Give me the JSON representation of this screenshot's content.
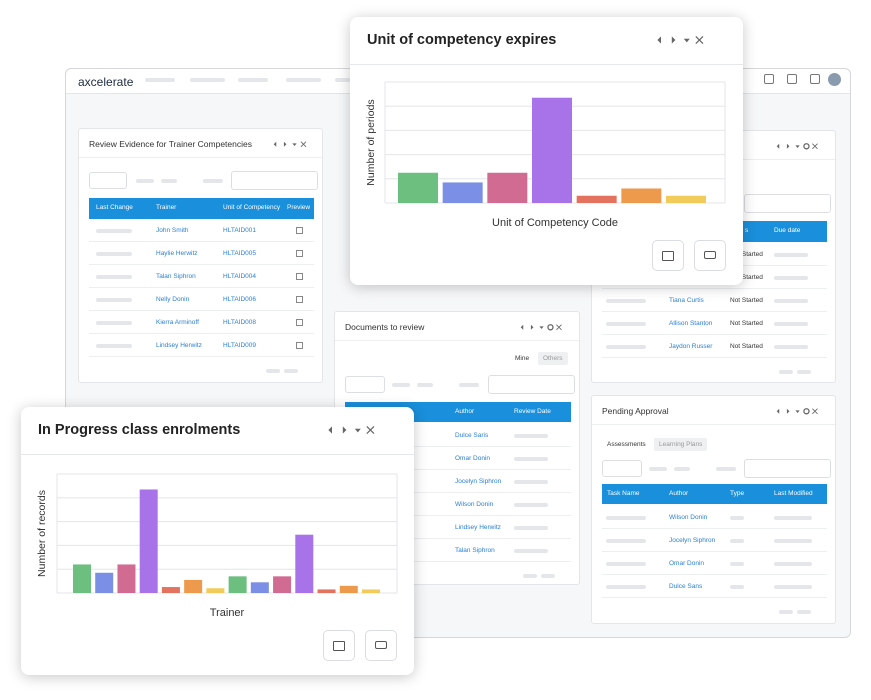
{
  "app": {
    "logo": "axcelerate"
  },
  "panels": [
    {
      "title": "Review Evidence for Trainer Competencies",
      "columns": [
        "Last Change",
        "Trainer",
        "Unit of Competency",
        "Preview"
      ],
      "rows": [
        {
          "trainer": "John Smith",
          "unit": "HLTAID001"
        },
        {
          "trainer": "Haylie Herwitz",
          "unit": "HLTAID005"
        },
        {
          "trainer": "Talan Siphron",
          "unit": "HLTAID004"
        },
        {
          "trainer": "Nelly Donin",
          "unit": "HLTAID006"
        },
        {
          "trainer": "Kierra Arminoff",
          "unit": "HLTAID008"
        },
        {
          "trainer": "Lindsey Herwitz",
          "unit": "HLTAID009"
        }
      ]
    },
    {
      "title": "Documents to review",
      "tabs": [
        "Mine",
        "Others"
      ],
      "columns": [
        "Author",
        "Review Date"
      ],
      "rows": [
        {
          "author": "Dulce Saris"
        },
        {
          "author": "Omar Donin"
        },
        {
          "author": "Jocelyn Siphron"
        },
        {
          "author": "Wilson Donin"
        },
        {
          "author": "Lindsey Herwitz"
        },
        {
          "author": "Talan Siphron"
        }
      ]
    },
    {
      "columns": [
        "s",
        "Due date"
      ],
      "rows": [
        {
          "status": "Not Started"
        },
        {
          "status": "Not Started"
        },
        {
          "name": "Tiana Curtis",
          "status": "Not Started"
        },
        {
          "name": "Allison Stanton",
          "status": "Not Started"
        },
        {
          "name": "Jaydon Russer",
          "status": "Not Started"
        }
      ]
    },
    {
      "title": "Pending Approval",
      "tabs": [
        "Assessments",
        "Learning Plans"
      ],
      "columns": [
        "Task Name",
        "Author",
        "Type",
        "Last Modified"
      ],
      "rows": [
        {
          "author": "Wilson Donin"
        },
        {
          "author": "Jocelyn Siphron"
        },
        {
          "author": "Omar Donin"
        },
        {
          "author": "Dulce Sans"
        }
      ]
    }
  ],
  "popups": [
    {
      "title": "Unit of competency expires",
      "chart": {
        "type": "bar",
        "y_label": "Number of periods",
        "x_label": "Unit of Competency Code",
        "ylim": [
          0,
          5
        ],
        "grid_lines": [
          0,
          1,
          2,
          3,
          4,
          5
        ],
        "values": [
          1.25,
          0.85,
          1.25,
          4.35,
          0.3,
          0.6,
          0.3
        ],
        "colors": [
          "#6dbf80",
          "#7b8fe6",
          "#d26b91",
          "#a873e8",
          "#e3735f",
          "#ee9a4d",
          "#f2cc5a"
        ]
      }
    },
    {
      "title": "In Progress class enrolments",
      "chart": {
        "type": "bar",
        "y_label": "Number of records",
        "x_label": "Trainer",
        "ylim": [
          0,
          5
        ],
        "grid_lines": [
          0,
          1,
          2,
          3,
          4,
          5
        ],
        "values": [
          1.2,
          0.85,
          1.2,
          4.35,
          0.25,
          0.55,
          0.2,
          0.7,
          0.45,
          0.7,
          2.45,
          0.15,
          0.3,
          0.15
        ],
        "colors": [
          "#6dbf80",
          "#7b8fe6",
          "#d26b91",
          "#a873e8",
          "#e3735f",
          "#ee9a4d",
          "#f2cc5a",
          "#6dbf80",
          "#7b8fe6",
          "#d26b91",
          "#a873e8",
          "#e3735f",
          "#ee9a4d",
          "#f2cc5a"
        ]
      }
    }
  ]
}
